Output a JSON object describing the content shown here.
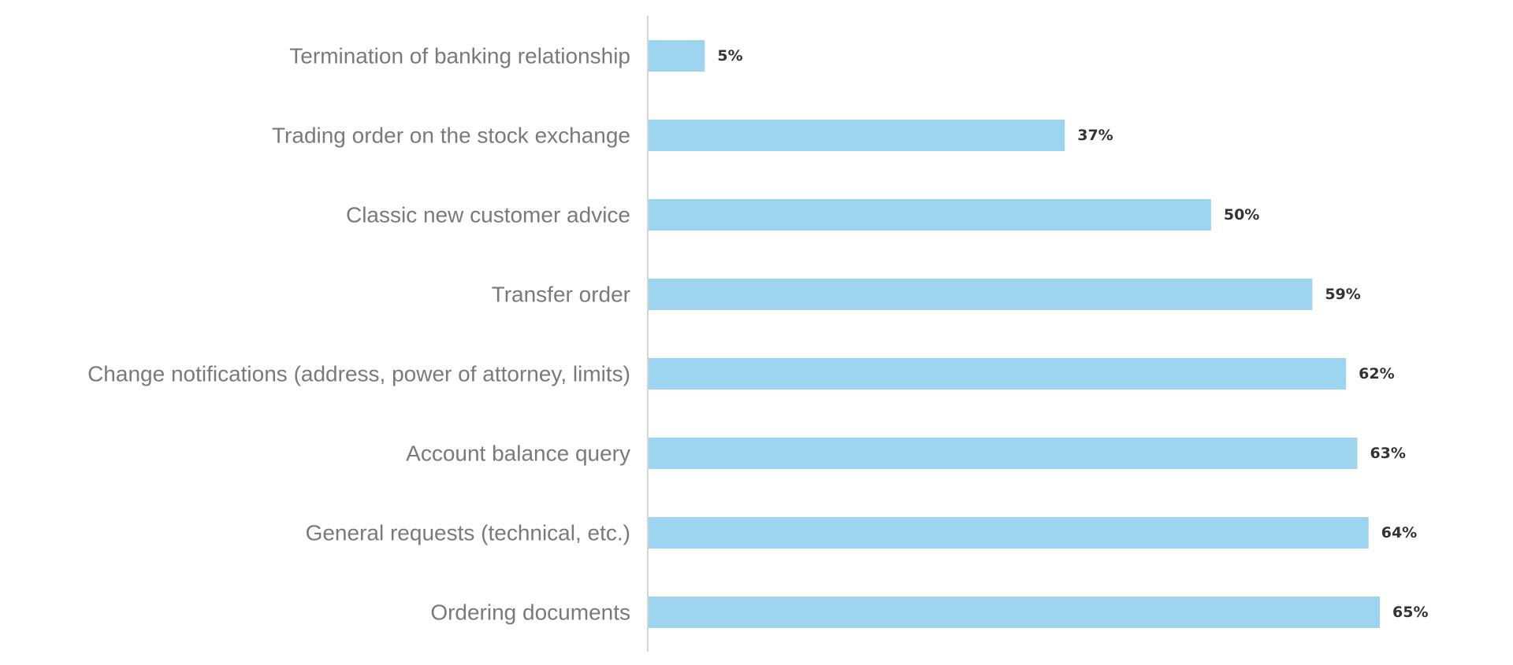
{
  "chart_data": {
    "type": "bar",
    "orientation": "horizontal",
    "categories": [
      "Termination of banking relationship",
      "Trading order on the stock exchange",
      "Classic new customer advice",
      "Transfer order",
      "Change notifications (address, power of attorney, limits)",
      "Account balance query",
      "General requests (technical, etc.)",
      "Ordering documents"
    ],
    "values": [
      5,
      37,
      50,
      59,
      62,
      63,
      64,
      65
    ],
    "value_labels": [
      "5%",
      "37%",
      "50%",
      "59%",
      "62%",
      "63%",
      "64%",
      "65%"
    ],
    "xlim": [
      0,
      65
    ],
    "grid": false,
    "legend": "none",
    "colors": {
      "bar": "#9dd5f0",
      "category_text": "#7a7a7a",
      "value_text": "#333333",
      "axis": "#d6d6d6"
    }
  }
}
